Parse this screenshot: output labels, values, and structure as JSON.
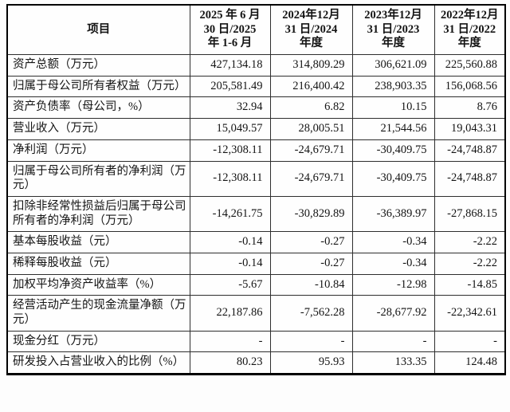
{
  "table": {
    "header": {
      "item_label": "项目",
      "periods": [
        "2025 年 6 月\n30 日/2025\n年 1-6 月",
        "2024年12月\n31 日/2024\n年度",
        "2023年12月\n31 日/2023\n年度",
        "2022年12月\n31 日/2022\n年度"
      ]
    },
    "rows": [
      {
        "label": "资产总额（万元）",
        "values": [
          "427,134.18",
          "314,809.29",
          "306,621.09",
          "225,560.88"
        ]
      },
      {
        "label": "归属于母公司所有者权益（万元）",
        "values": [
          "205,581.49",
          "216,400.42",
          "238,903.35",
          "156,068.56"
        ]
      },
      {
        "label": "资产负债率（母公司，%）",
        "values": [
          "32.94",
          "6.82",
          "10.15",
          "8.76"
        ]
      },
      {
        "label": "营业收入（万元）",
        "values": [
          "15,049.57",
          "28,005.51",
          "21,544.56",
          "19,043.31"
        ]
      },
      {
        "label": "净利润（万元）",
        "values": [
          "-12,308.11",
          "-24,679.71",
          "-30,409.75",
          "-24,748.87"
        ]
      },
      {
        "label": "归属于母公司所有者的净利润（万元）",
        "values": [
          "-12,308.11",
          "-24,679.71",
          "-30,409.75",
          "-24,748.87"
        ]
      },
      {
        "label": "扣除非经常性损益后归属于母公司所有者的净利润（万元）",
        "values": [
          "-14,261.75",
          "-30,829.89",
          "-36,389.97",
          "-27,868.15"
        ]
      },
      {
        "label": "基本每股收益（元）",
        "values": [
          "-0.14",
          "-0.27",
          "-0.34",
          "-2.22"
        ]
      },
      {
        "label": "稀释每股收益（元）",
        "values": [
          "-0.14",
          "-0.27",
          "-0.34",
          "-2.22"
        ]
      },
      {
        "label": "加权平均净资产收益率（%）",
        "values": [
          "-5.67",
          "-10.84",
          "-12.98",
          "-14.85"
        ]
      },
      {
        "label": "经营活动产生的现金流量净额（万元）",
        "values": [
          "22,187.86",
          "-7,562.28",
          "-28,677.92",
          "-22,342.61"
        ]
      },
      {
        "label": "现金分红（万元）",
        "values": [
          "-",
          "-",
          "-",
          "-"
        ]
      },
      {
        "label": "研发投入占营业收入的比例（%）",
        "values": [
          "80.23",
          "95.93",
          "133.35",
          "124.48"
        ]
      }
    ]
  },
  "colors": {
    "text": "#141414",
    "border_outer": "#000000",
    "border_inner": "#2e2e2e",
    "background": "#fdfdfd"
  }
}
